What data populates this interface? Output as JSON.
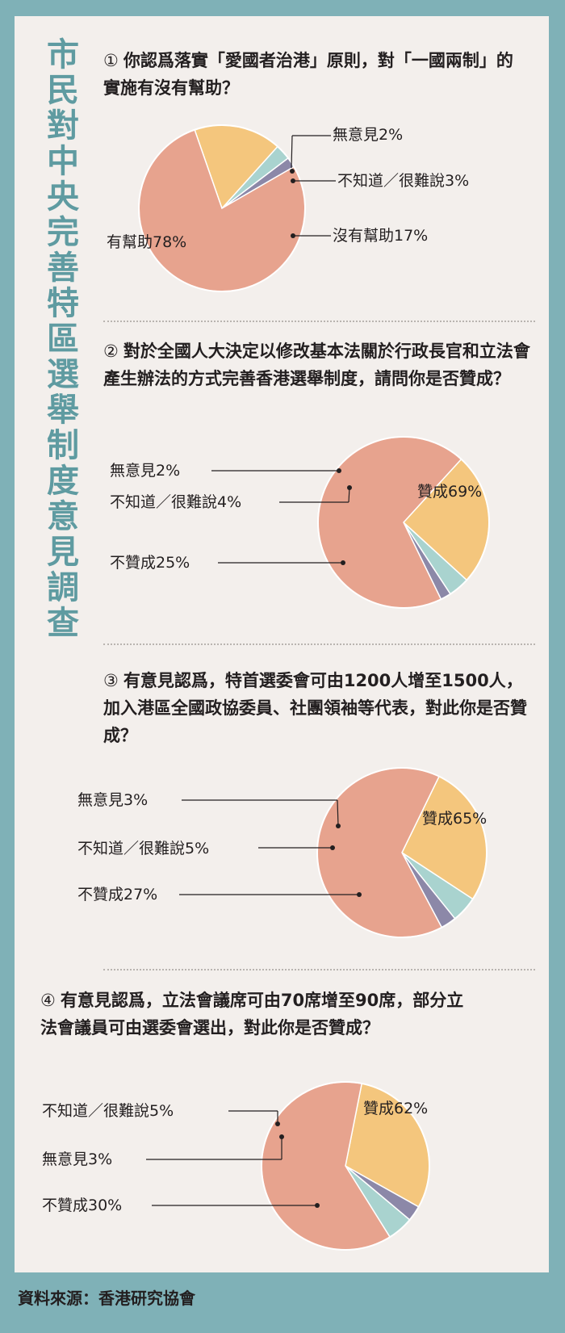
{
  "title": "市民對中央完善特區選舉制度意見調查",
  "source": "資料來源：香港研究協會",
  "colors": {
    "support": "#e7a38e",
    "against": "#f4c67d",
    "dontknow": "#a9d3cf",
    "noopinion": "#8c88a8",
    "edge": "#ffffff"
  },
  "chart_data": [
    {
      "type": "pie",
      "number": "①",
      "question": "你認爲落實「愛國者治港」原則，對「一國兩制」的實施有沒有幫助？",
      "slices": [
        {
          "label": "有幫助",
          "value": 78,
          "text": "有幫助78%",
          "color": "support"
        },
        {
          "label": "沒有幫助",
          "value": 17,
          "text": "沒有幫助17%",
          "color": "against"
        },
        {
          "label": "不知道／很難說",
          "value": 3,
          "text": "不知道／很難說3%",
          "color": "dontknow"
        },
        {
          "label": "無意見",
          "value": 2,
          "text": "無意見2%",
          "color": "noopinion"
        }
      ]
    },
    {
      "type": "pie",
      "number": "②",
      "question": "對於全國人大決定以修改基本法關於行政長官和立法會產生辦法的方式完善香港選舉制度，請問你是否贊成？",
      "slices": [
        {
          "label": "贊成",
          "value": 69,
          "text": "贊成69%",
          "color": "support"
        },
        {
          "label": "不贊成",
          "value": 25,
          "text": "不贊成25%",
          "color": "against"
        },
        {
          "label": "不知道／很難說",
          "value": 4,
          "text": "不知道／很難說4%",
          "color": "dontknow"
        },
        {
          "label": "無意見",
          "value": 2,
          "text": "無意見2%",
          "color": "noopinion"
        }
      ]
    },
    {
      "type": "pie",
      "number": "③",
      "question": "有意見認爲，特首選委會可由1200人增至1500人，加入港區全國政協委員、社團領袖等代表，對此你是否贊成？",
      "slices": [
        {
          "label": "贊成",
          "value": 65,
          "text": "贊成65%",
          "color": "support"
        },
        {
          "label": "不贊成",
          "value": 27,
          "text": "不贊成27%",
          "color": "against"
        },
        {
          "label": "不知道／很難說",
          "value": 5,
          "text": "不知道／很難說5%",
          "color": "dontknow"
        },
        {
          "label": "無意見",
          "value": 3,
          "text": "無意見3%",
          "color": "noopinion"
        }
      ]
    },
    {
      "type": "pie",
      "number": "④",
      "question": "有意見認爲，立法會議席可由70席增至90席，部分立法會議員可由選委會選出，對此你是否贊成？",
      "slices": [
        {
          "label": "贊成",
          "value": 62,
          "text": "贊成62%",
          "color": "support"
        },
        {
          "label": "不贊成",
          "value": 30,
          "text": "不贊成30%",
          "color": "against"
        },
        {
          "label": "不知道／很難說",
          "value": 5,
          "text": "不知道／很難說5%",
          "color": "dontknow"
        },
        {
          "label": "無意見",
          "value": 3,
          "text": "無意見3%",
          "color": "noopinion"
        }
      ]
    }
  ]
}
